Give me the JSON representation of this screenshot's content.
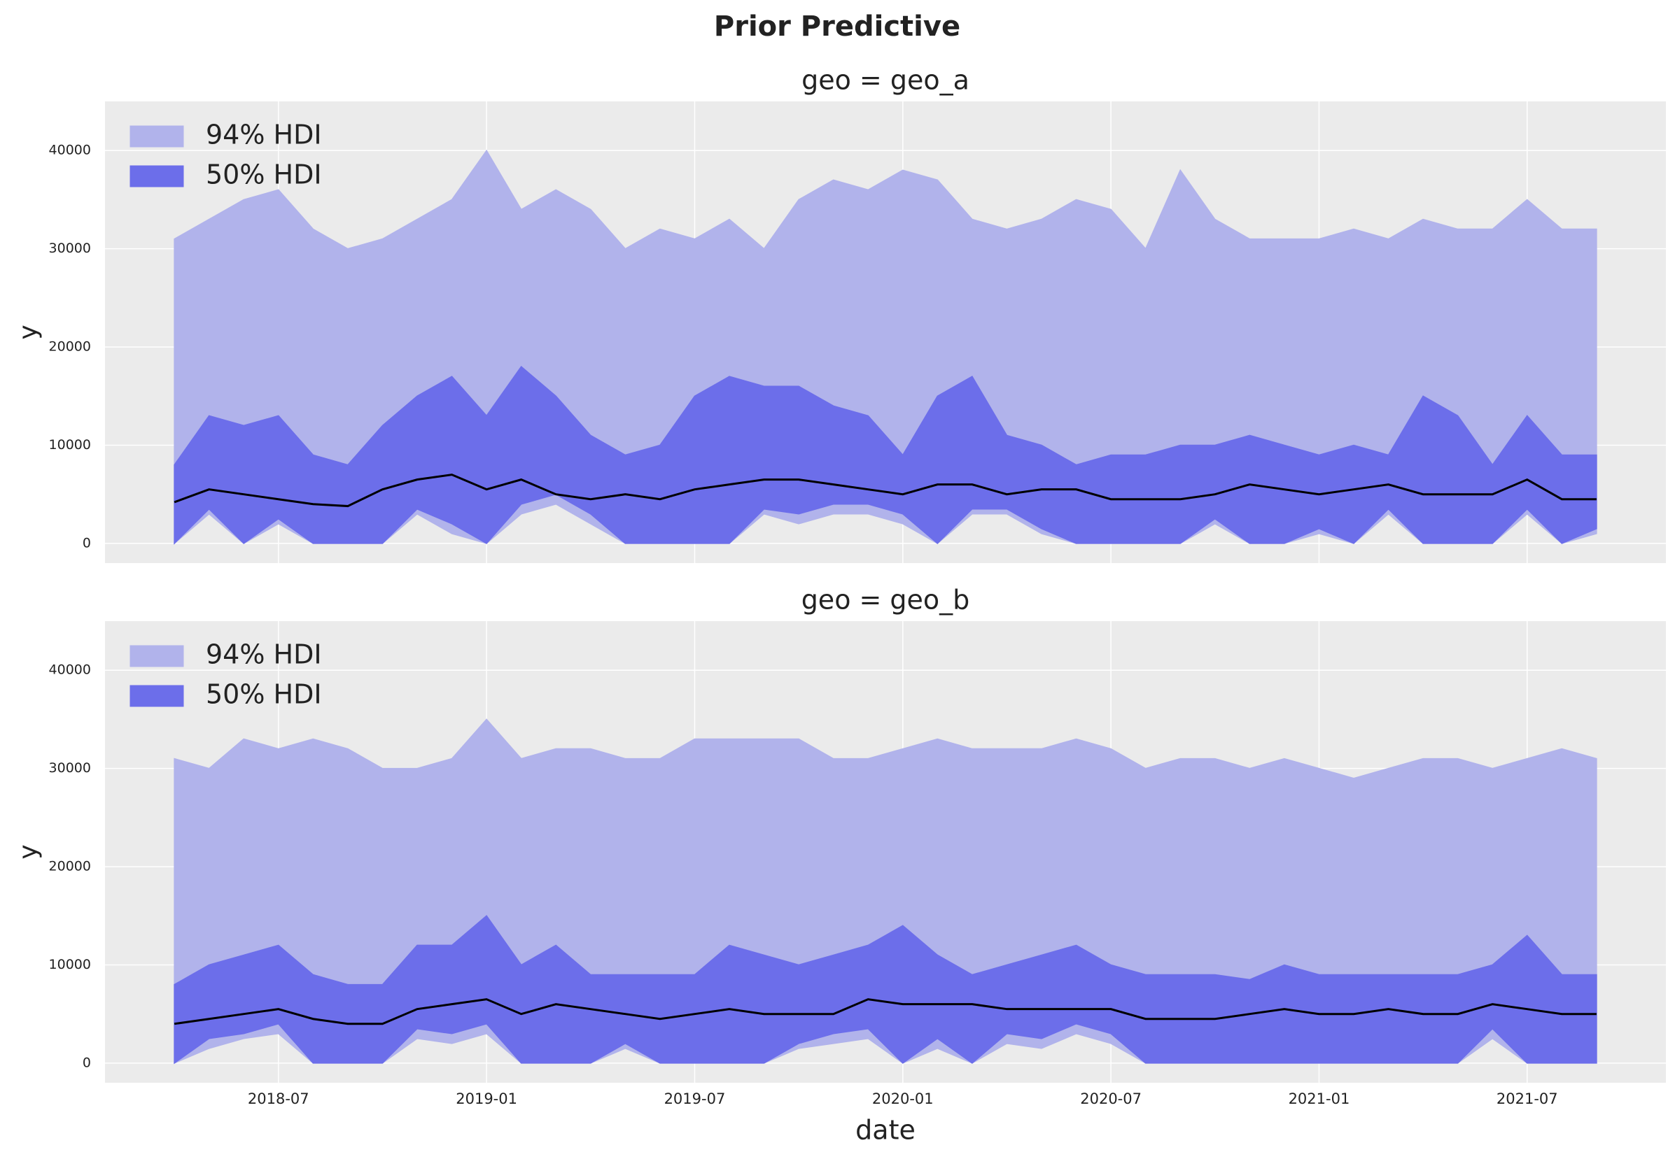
{
  "title": "Prior Predictive",
  "chart_data": [
    {
      "type": "band",
      "subtitle": "geo = geo_a",
      "ylabel": "y",
      "x": [
        "2018-04",
        "2018-05",
        "2018-06",
        "2018-07",
        "2018-08",
        "2018-09",
        "2018-10",
        "2018-11",
        "2018-12",
        "2019-01",
        "2019-02",
        "2019-03",
        "2019-04",
        "2019-05",
        "2019-06",
        "2019-07",
        "2019-08",
        "2019-09",
        "2019-10",
        "2019-11",
        "2019-12",
        "2020-01",
        "2020-02",
        "2020-03",
        "2020-04",
        "2020-05",
        "2020-06",
        "2020-07",
        "2020-08",
        "2020-09",
        "2020-10",
        "2020-11",
        "2020-12",
        "2021-01",
        "2021-02",
        "2021-03",
        "2021-04",
        "2021-05",
        "2021-06",
        "2021-07",
        "2021-08",
        "2021-09"
      ],
      "bands": [
        {
          "name": "94% HDI",
          "color": "#b1b3eb",
          "upper": [
            31000,
            33000,
            35000,
            36000,
            32000,
            30000,
            31000,
            33000,
            35000,
            40000,
            34000,
            36000,
            34000,
            30000,
            32000,
            31000,
            33000,
            30000,
            35000,
            37000,
            36000,
            38000,
            37000,
            33000,
            32000,
            33000,
            35000,
            34000,
            30000,
            38000,
            33000,
            31000,
            31000,
            31000,
            32000,
            31000,
            33000,
            32000,
            32000,
            35000,
            32000,
            32000
          ],
          "lower": [
            0,
            3000,
            0,
            2000,
            0,
            0,
            0,
            3000,
            1000,
            0,
            3000,
            4000,
            2000,
            0,
            0,
            0,
            0,
            3000,
            2000,
            3000,
            3000,
            2000,
            0,
            3000,
            3000,
            1000,
            0,
            0,
            0,
            0,
            2000,
            0,
            0,
            1000,
            0,
            3000,
            0,
            0,
            0,
            3000,
            0,
            1000
          ]
        },
        {
          "name": "50% HDI",
          "color": "#6c6eea",
          "upper": [
            8000,
            13000,
            12000,
            13000,
            9000,
            8000,
            12000,
            15000,
            17000,
            13000,
            18000,
            15000,
            11000,
            9000,
            10000,
            15000,
            17000,
            16000,
            16000,
            14000,
            13000,
            9000,
            15000,
            17000,
            11000,
            10000,
            8000,
            9000,
            9000,
            10000,
            10000,
            11000,
            10000,
            9000,
            10000,
            9000,
            15000,
            13000,
            8000,
            13000,
            9000,
            9000
          ],
          "lower": [
            0,
            3500,
            0,
            2500,
            0,
            0,
            0,
            3500,
            2000,
            0,
            4000,
            5000,
            3000,
            0,
            0,
            0,
            0,
            3500,
            3000,
            4000,
            4000,
            3000,
            0,
            3500,
            3500,
            1500,
            0,
            0,
            0,
            0,
            2500,
            0,
            0,
            1500,
            0,
            3500,
            0,
            0,
            0,
            3500,
            0,
            1500
          ]
        }
      ],
      "series": [
        {
          "color": "#000000",
          "values": [
            4200,
            5500,
            5000,
            4500,
            4000,
            3800,
            5500,
            6500,
            7000,
            5500,
            6500,
            5000,
            4500,
            5000,
            4500,
            5500,
            6000,
            6500,
            6500,
            6000,
            5500,
            5000,
            6000,
            6000,
            5000,
            5500,
            5500,
            4500,
            4500,
            4500,
            5000,
            6000,
            5500,
            5000,
            5500,
            6000,
            5000,
            5000,
            5000,
            6500,
            4500,
            4500
          ]
        }
      ],
      "xlim": [
        "2018-02",
        "2021-11"
      ],
      "xticks": [
        "2018-07",
        "2019-01",
        "2019-07",
        "2020-01",
        "2020-07",
        "2021-01",
        "2021-07"
      ],
      "ylim": [
        -2000,
        45000
      ],
      "yticks": [
        0,
        10000,
        20000,
        30000,
        40000
      ],
      "grid": true,
      "legend": "upper-left"
    },
    {
      "type": "band",
      "subtitle": "geo = geo_b",
      "ylabel": "y",
      "xlabel": "date",
      "x": [
        "2018-04",
        "2018-05",
        "2018-06",
        "2018-07",
        "2018-08",
        "2018-09",
        "2018-10",
        "2018-11",
        "2018-12",
        "2019-01",
        "2019-02",
        "2019-03",
        "2019-04",
        "2019-05",
        "2019-06",
        "2019-07",
        "2019-08",
        "2019-09",
        "2019-10",
        "2019-11",
        "2019-12",
        "2020-01",
        "2020-02",
        "2020-03",
        "2020-04",
        "2020-05",
        "2020-06",
        "2020-07",
        "2020-08",
        "2020-09",
        "2020-10",
        "2020-11",
        "2020-12",
        "2021-01",
        "2021-02",
        "2021-03",
        "2021-04",
        "2021-05",
        "2021-06",
        "2021-07",
        "2021-08",
        "2021-09"
      ],
      "bands": [
        {
          "name": "94% HDI",
          "color": "#b1b3eb",
          "upper": [
            31000,
            30000,
            33000,
            32000,
            33000,
            32000,
            30000,
            30000,
            31000,
            35000,
            31000,
            32000,
            32000,
            31000,
            31000,
            33000,
            33000,
            33000,
            33000,
            31000,
            31000,
            32000,
            33000,
            32000,
            32000,
            32000,
            33000,
            32000,
            30000,
            31000,
            31000,
            30000,
            31000,
            30000,
            29000,
            30000,
            31000,
            31000,
            30000,
            31000,
            32000,
            31000
          ],
          "lower": [
            0,
            1500,
            2500,
            3000,
            0,
            0,
            0,
            2500,
            2000,
            3000,
            0,
            0,
            0,
            1500,
            0,
            0,
            0,
            0,
            1500,
            2000,
            2500,
            0,
            1500,
            0,
            2000,
            1500,
            3000,
            2000,
            0,
            0,
            0,
            0,
            0,
            0,
            0,
            0,
            0,
            0,
            2500,
            0,
            0,
            0
          ]
        },
        {
          "name": "50% HDI",
          "color": "#6c6eea",
          "upper": [
            8000,
            10000,
            11000,
            12000,
            9000,
            8000,
            8000,
            12000,
            12000,
            15000,
            10000,
            12000,
            9000,
            9000,
            9000,
            9000,
            12000,
            11000,
            10000,
            11000,
            12000,
            14000,
            11000,
            9000,
            10000,
            11000,
            12000,
            10000,
            9000,
            9000,
            9000,
            8500,
            10000,
            9000,
            9000,
            9000,
            9000,
            9000,
            10000,
            13000,
            9000,
            9000
          ],
          "lower": [
            0,
            2500,
            3000,
            4000,
            0,
            0,
            0,
            3500,
            3000,
            4000,
            0,
            0,
            0,
            2000,
            0,
            0,
            0,
            0,
            2000,
            3000,
            3500,
            0,
            2500,
            0,
            3000,
            2500,
            4000,
            3000,
            0,
            0,
            0,
            0,
            0,
            0,
            0,
            0,
            0,
            0,
            3500,
            0,
            0,
            0
          ]
        }
      ],
      "series": [
        {
          "color": "#000000",
          "values": [
            4000,
            4500,
            5000,
            5500,
            4500,
            4000,
            4000,
            5500,
            6000,
            6500,
            5000,
            6000,
            5500,
            5000,
            4500,
            5000,
            5500,
            5000,
            5000,
            5000,
            6500,
            6000,
            6000,
            6000,
            5500,
            5500,
            5500,
            5500,
            4500,
            4500,
            4500,
            5000,
            5500,
            5000,
            5000,
            5500,
            5000,
            5000,
            6000,
            5500,
            5000,
            5000
          ]
        }
      ],
      "xlim": [
        "2018-02",
        "2021-11"
      ],
      "xticks": [
        "2018-07",
        "2019-01",
        "2019-07",
        "2020-01",
        "2020-07",
        "2021-01",
        "2021-07"
      ],
      "ylim": [
        -2000,
        45000
      ],
      "yticks": [
        0,
        10000,
        20000,
        30000,
        40000
      ],
      "grid": true,
      "legend": "upper-left"
    }
  ]
}
